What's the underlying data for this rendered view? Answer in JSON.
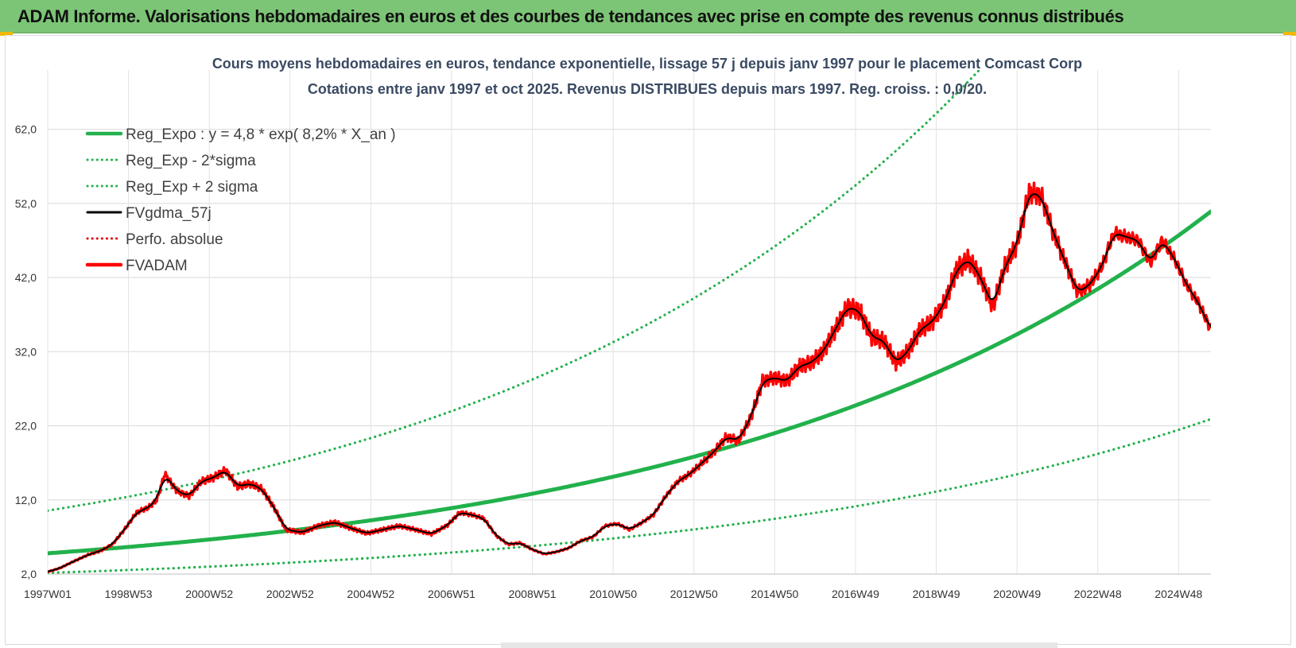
{
  "header": {
    "title": "ADAM Informe. Valorisations hebdomadaires en euros et des courbes de tendances avec prise en compte des revenus connus distribués"
  },
  "chart_data": {
    "type": "line",
    "title": "Cours moyens hebdomadaires en euros, tendance exponentielle, lissage 57 j depuis janv 1997 pour le placement Comcast Corp",
    "subtitle": "Cotations entre janv 1997 et oct 2025. Revenus DISTRIBUES depuis mars 1997. Reg. croiss. : 0,0/20.",
    "xlabel": "",
    "ylabel": "",
    "ylim": [
      2.0,
      70.0
    ],
    "xlim": [
      1997.0,
      2025.8
    ],
    "y_ticks": [
      "2,0",
      "12,0",
      "22,0",
      "32,0",
      "42,0",
      "52,0",
      "62,0"
    ],
    "y_tick_values": [
      2,
      12,
      22,
      32,
      42,
      52,
      62
    ],
    "x_ticks": [
      "1997W01",
      "1998W53",
      "2000W52",
      "2002W52",
      "2004W52",
      "2006W51",
      "2008W51",
      "2010W50",
      "2012W50",
      "2014W50",
      "2016W49",
      "2018W49",
      "2020W49",
      "2022W48",
      "2024W48"
    ],
    "x_tick_values": [
      1997.0,
      1999.0,
      2001.0,
      2003.0,
      2005.0,
      2007.0,
      2009.0,
      2011.0,
      2013.0,
      2015.0,
      2017.0,
      2019.0,
      2021.0,
      2023.0,
      2025.0
    ],
    "grid": true,
    "legend_position": "top-left",
    "series": [
      {
        "name": "Reg_Expo : y = 4,8 * exp( 8,2% *  X_an )",
        "kind": "exp-trend",
        "a": 4.8,
        "rate": 0.082,
        "factor": 1.0,
        "color": "#22b14c",
        "style": "solid"
      },
      {
        "name": "Reg_Exp - 2*sigma",
        "kind": "exp-trend",
        "a": 4.8,
        "rate": 0.082,
        "factor": 0.45,
        "color": "#22b14c",
        "style": "dotted"
      },
      {
        "name": "Reg_Exp + 2 sigma",
        "kind": "exp-trend",
        "a": 4.8,
        "rate": 0.082,
        "factor": 2.2,
        "color": "#22b14c",
        "style": "dotted"
      },
      {
        "name": "FVgdma_57j",
        "kind": "smoothed",
        "color": "#000000",
        "style": "solid"
      },
      {
        "name": "Perfo. absolue",
        "kind": "none",
        "color": "#e00000",
        "style": "dotted"
      },
      {
        "name": "FVADAM",
        "kind": "data",
        "color": "#ff0000",
        "style": "solid",
        "x": [
          1997.0,
          1997.3,
          1997.6,
          1998.0,
          1998.3,
          1998.6,
          1998.9,
          1999.2,
          1999.5,
          1999.7,
          1999.9,
          2000.2,
          2000.5,
          2000.8,
          2001.1,
          2001.4,
          2001.7,
          2002.0,
          2002.3,
          2002.6,
          2002.9,
          2003.3,
          2003.7,
          2004.1,
          2004.5,
          2004.9,
          2005.3,
          2005.7,
          2006.1,
          2006.5,
          2006.9,
          2007.2,
          2007.5,
          2007.8,
          2008.1,
          2008.4,
          2008.7,
          2009.0,
          2009.3,
          2009.6,
          2009.9,
          2010.2,
          2010.5,
          2010.8,
          2011.1,
          2011.4,
          2011.7,
          2012.0,
          2012.3,
          2012.6,
          2012.9,
          2013.2,
          2013.5,
          2013.8,
          2014.1,
          2014.4,
          2014.7,
          2015.0,
          2015.3,
          2015.6,
          2015.9,
          2016.2,
          2016.5,
          2016.8,
          2017.1,
          2017.4,
          2017.7,
          2018.0,
          2018.3,
          2018.6,
          2018.9,
          2019.2,
          2019.5,
          2019.8,
          2020.1,
          2020.4,
          2020.7,
          2021.0,
          2021.3,
          2021.6,
          2021.9,
          2022.2,
          2022.5,
          2022.8,
          2023.1,
          2023.4,
          2023.7,
          2024.0,
          2024.3,
          2024.6,
          2024.9,
          2025.2,
          2025.5,
          2025.8
        ],
        "values": [
          2.3,
          2.8,
          3.6,
          4.6,
          5.1,
          6.0,
          8.0,
          10.3,
          11.0,
          12.0,
          15.5,
          13.2,
          12.5,
          14.5,
          15.0,
          16.0,
          13.8,
          14.2,
          13.5,
          11.0,
          8.0,
          7.6,
          8.5,
          9.0,
          8.2,
          7.5,
          8.0,
          8.5,
          8.0,
          7.4,
          8.6,
          10.3,
          10.0,
          9.5,
          7.2,
          6.0,
          6.2,
          5.3,
          4.7,
          5.0,
          5.5,
          6.5,
          7.0,
          8.5,
          8.8,
          8.0,
          8.9,
          10.0,
          12.5,
          14.5,
          15.5,
          17.0,
          18.5,
          20.5,
          20.0,
          23.0,
          28.0,
          28.5,
          28.0,
          30.0,
          30.5,
          32.0,
          35.0,
          38.0,
          37.5,
          34.0,
          33.5,
          30.5,
          32.0,
          35.0,
          36.0,
          38.5,
          43.0,
          44.5,
          42.0,
          38.0,
          43.5,
          46.5,
          53.5,
          53.0,
          48.0,
          44.0,
          40.0,
          41.0,
          43.5,
          48.0,
          47.5,
          47.0,
          44.0,
          47.0,
          44.5,
          41.0,
          38.5,
          35.0
        ]
      }
    ]
  }
}
